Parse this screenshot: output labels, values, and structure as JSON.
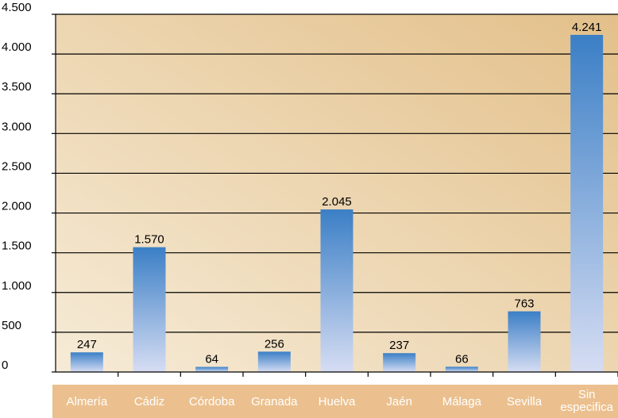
{
  "chart_data": {
    "type": "bar",
    "categories": [
      "Almería",
      "Cádiz",
      "Córdoba",
      "Granada",
      "Huelva",
      "Jaén",
      "Málaga",
      "Sevilla",
      "Sin especificar"
    ],
    "category_labels_displayed": [
      [
        "Almería"
      ],
      [
        "Cádiz"
      ],
      [
        "Córdoba"
      ],
      [
        "Granada"
      ],
      [
        "Huelva"
      ],
      [
        "Jaén"
      ],
      [
        "Málaga"
      ],
      [
        "Sevilla"
      ],
      [
        "Sin",
        "especifica"
      ]
    ],
    "values": [
      247,
      1570,
      64,
      256,
      2045,
      237,
      66,
      763,
      4241
    ],
    "data_labels": [
      "247",
      "1.570",
      "64",
      "256",
      "2.045",
      "237",
      "66",
      "763",
      "4.241"
    ],
    "yticks": [
      0,
      500,
      1000,
      1500,
      2000,
      2500,
      3000,
      3500,
      4000,
      4500
    ],
    "ytick_labels": [
      "0",
      "500",
      "1.000",
      "1.500",
      "2.000",
      "2.500",
      "3.000",
      "3.500",
      "4.000",
      "4.500"
    ],
    "ylim": [
      0,
      4500
    ],
    "grid": true,
    "title": "",
    "xlabel": "",
    "ylabel": "",
    "colors": {
      "plot_bg_light": "#f6ebd7",
      "plot_bg_dark": "#e3c08a",
      "bar_top": "#3b7fc6",
      "bar_bottom": "#d6ddf3",
      "category_band": "#ebc08e",
      "category_text": "#ffffff"
    }
  }
}
